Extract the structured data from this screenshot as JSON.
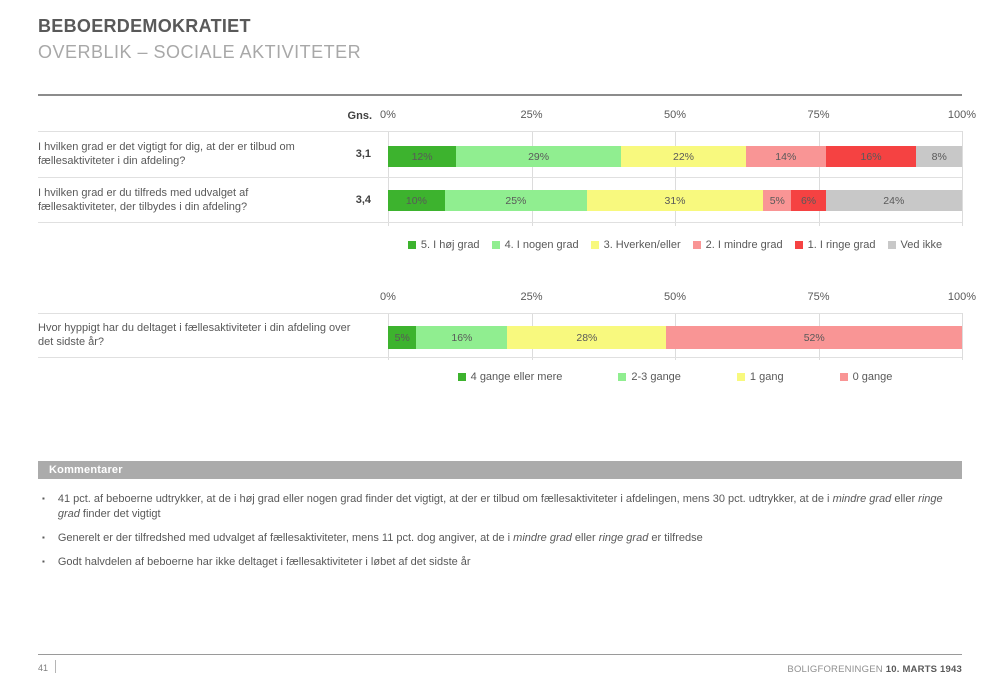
{
  "slide": {
    "title": "BEBOERDEMOKRATIET",
    "subtitle": "OVERBLIK – SOCIALE AKTIVITETER"
  },
  "chart_data": [
    {
      "type": "bar",
      "variant": "stacked-horizontal-100pct",
      "gns_header": "Gns.",
      "axis_ticks": [
        "0%",
        "25%",
        "50%",
        "75%",
        "100%"
      ],
      "xlim": [
        0,
        100
      ],
      "grid": true,
      "legend_position": "bottom",
      "categories": [
        "I hvilken grad er det vigtigt for dig, at der er tilbud om fællesaktiviteter i din afdeling?",
        "I hvilken grad er du tilfreds med udvalget af fællesaktiviteter, der tilbydes i din afdeling?"
      ],
      "gns_values": [
        "3,1",
        "3,4"
      ],
      "series": [
        {
          "name": "5. I høj grad",
          "color": "#3db32e",
          "values": [
            12,
            10
          ]
        },
        {
          "name": "4. I nogen grad",
          "color": "#90ee90",
          "values": [
            29,
            25
          ]
        },
        {
          "name": "3. Hverken/eller",
          "color": "#f8f97e",
          "values": [
            22,
            31
          ]
        },
        {
          "name": "2. I mindre grad",
          "color": "#f99595",
          "values": [
            14,
            5
          ]
        },
        {
          "name": "1. I ringe grad",
          "color": "#f54242",
          "values": [
            16,
            6
          ]
        },
        {
          "name": "Ved ikke",
          "color": "#c8c8c8",
          "values": [
            8,
            24
          ]
        }
      ]
    },
    {
      "type": "bar",
      "variant": "stacked-horizontal-100pct",
      "axis_ticks": [
        "0%",
        "25%",
        "50%",
        "75%",
        "100%"
      ],
      "xlim": [
        0,
        100
      ],
      "grid": true,
      "legend_position": "bottom",
      "categories": [
        "Hvor hyppigt har du deltaget i fællesaktiviteter i din afdeling over det sidste år?"
      ],
      "series": [
        {
          "name": "4 gange eller mere",
          "color": "#3db32e",
          "values": [
            5
          ]
        },
        {
          "name": "2-3 gange",
          "color": "#90ee90",
          "values": [
            16
          ]
        },
        {
          "name": "1 gang",
          "color": "#f8f97e",
          "values": [
            28
          ]
        },
        {
          "name": "0 gange",
          "color": "#f99595",
          "values": [
            52
          ]
        }
      ]
    }
  ],
  "comments": {
    "header": "Kommentarer",
    "bullet_icon": "▪",
    "bullets": [
      {
        "parts": [
          "41 pct. af beboerne udtrykker, at de i høj grad eller nogen grad finder det vigtigt, at der er tilbud om fællesaktiviteter i afdelingen, mens 30 pct. udtrykker, at de i ",
          "mindre grad",
          " eller ",
          "ringe grad",
          " finder det vigtigt"
        ]
      },
      {
        "parts": [
          "Generelt er der tilfredshed med udvalget af fællesaktiviteter, mens 11 pct. dog angiver, at de i ",
          "mindre grad",
          " eller ",
          "ringe grad",
          " er tilfredse"
        ]
      },
      {
        "parts": [
          "Godt halvdelen af beboerne har ikke deltaget i fællesaktiviteter i løbet af det sidste år"
        ]
      }
    ]
  },
  "footer": {
    "page_number": "41",
    "organization": "BOLIGFORENINGEN",
    "date": "10. MARTS 1943"
  },
  "colors": {
    "title": "#595959",
    "subtitle": "#a8a8a8",
    "comments_bar": "#ababab",
    "gridline": "#dcdcdc"
  }
}
